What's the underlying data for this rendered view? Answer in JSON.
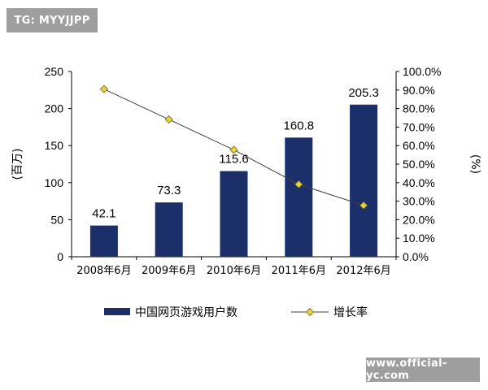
{
  "watermarks": {
    "top": "TG: MYYJJPP",
    "bottom": "www.official-yc.com"
  },
  "chart_data": {
    "type": "bar",
    "categories": [
      "2008年6月",
      "2009年6月",
      "2010年6月",
      "2011年6月",
      "2012年6月"
    ],
    "series": [
      {
        "name": "中国网页游戏用户数",
        "type": "bar",
        "axis": "left",
        "color": "#1b2f6b",
        "values": [
          42.1,
          73.3,
          115.6,
          160.8,
          205.3
        ],
        "labels": [
          "42.1",
          "73.3",
          "115.6",
          "160.8",
          "205.3"
        ]
      },
      {
        "name": "增长率",
        "type": "line",
        "axis": "right",
        "color": "#e6d23c",
        "line_color": "#404040",
        "values": [
          90.5,
          74.1,
          57.7,
          39.1,
          27.7
        ]
      }
    ],
    "ylabel_left": "(百万)",
    "ylabel_right": "(%)",
    "ylim_left": [
      0,
      250
    ],
    "yticks_left": [
      "0",
      "50",
      "100",
      "150",
      "200",
      "250"
    ],
    "ylim_right": [
      0,
      100
    ],
    "yticks_right": [
      "0.0%",
      "10.0%",
      "20.0%",
      "30.0%",
      "40.0%",
      "50.0%",
      "60.0%",
      "70.0%",
      "80.0%",
      "90.0%",
      "100.0%"
    ],
    "grid": false,
    "legend": "bottom"
  }
}
